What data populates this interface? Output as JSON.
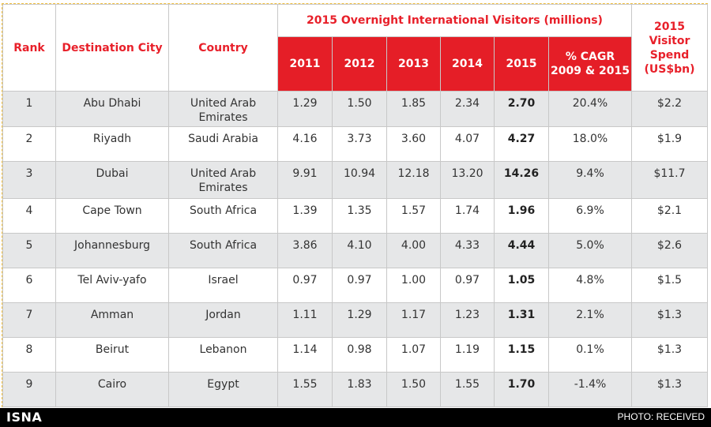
{
  "header": {
    "rank": "Rank",
    "city": "Destination City",
    "country": "Country",
    "group_title": "2015 Overnight International Visitors (millions)",
    "years": [
      "2011",
      "2012",
      "2013",
      "2014",
      "2015"
    ],
    "cagr_line1": "% CAGR",
    "cagr_line2": "2009 & 2015",
    "spend_line1": "2015",
    "spend_line2": "Visitor",
    "spend_line3": "Spend",
    "spend_line4": "(US$bn)"
  },
  "rows": [
    {
      "rank": "1",
      "city": "Abu Dhabi",
      "country_l1": "United Arab",
      "country_l2": "Emirates",
      "y2011": "1.29",
      "y2012": "1.50",
      "y2013": "1.85",
      "y2014": "2.34",
      "y2015": "2.70",
      "cagr": "20.4%",
      "spend": "$2.2"
    },
    {
      "rank": "2",
      "city": "Riyadh",
      "country_l1": "Saudi Arabia",
      "country_l2": "",
      "y2011": "4.16",
      "y2012": "3.73",
      "y2013": "3.60",
      "y2014": "4.07",
      "y2015": "4.27",
      "cagr": "18.0%",
      "spend": "$1.9"
    },
    {
      "rank": "3",
      "city": "Dubai",
      "country_l1": "United Arab",
      "country_l2": "Emirates",
      "y2011": "9.91",
      "y2012": "10.94",
      "y2013": "12.18",
      "y2014": "13.20",
      "y2015": "14.26",
      "cagr": "9.4%",
      "spend": "$11.7"
    },
    {
      "rank": "4",
      "city": "Cape Town",
      "country_l1": "South Africa",
      "country_l2": "",
      "y2011": "1.39",
      "y2012": "1.35",
      "y2013": "1.57",
      "y2014": "1.74",
      "y2015": "1.96",
      "cagr": "6.9%",
      "spend": "$2.1"
    },
    {
      "rank": "5",
      "city": "Johannesburg",
      "country_l1": "South Africa",
      "country_l2": "",
      "y2011": "3.86",
      "y2012": "4.10",
      "y2013": "4.00",
      "y2014": "4.33",
      "y2015": "4.44",
      "cagr": "5.0%",
      "spend": "$2.6"
    },
    {
      "rank": "6",
      "city": "Tel Aviv-yafo",
      "country_l1": "Israel",
      "country_l2": "",
      "y2011": "0.97",
      "y2012": "0.97",
      "y2013": "1.00",
      "y2014": "0.97",
      "y2015": "1.05",
      "cagr": "4.8%",
      "spend": "$1.5"
    },
    {
      "rank": "7",
      "city": "Amman",
      "country_l1": "Jordan",
      "country_l2": "",
      "y2011": "1.11",
      "y2012": "1.29",
      "y2013": "1.17",
      "y2014": "1.23",
      "y2015": "1.31",
      "cagr": "2.1%",
      "spend": "$1.3"
    },
    {
      "rank": "8",
      "city": "Beirut",
      "country_l1": "Lebanon",
      "country_l2": "",
      "y2011": "1.14",
      "y2012": "0.98",
      "y2013": "1.07",
      "y2014": "1.19",
      "y2015": "1.15",
      "cagr": "0.1%",
      "spend": "$1.3"
    },
    {
      "rank": "9",
      "city": "Cairo",
      "country_l1": "Egypt",
      "country_l2": "",
      "y2011": "1.55",
      "y2012": "1.83",
      "y2013": "1.50",
      "y2014": "1.55",
      "y2015": "1.70",
      "cagr": "-1.4%",
      "spend": "$1.3"
    }
  ],
  "footer": {
    "logo": "ISNA",
    "credit": "PHOTO: RECEIVED"
  },
  "colors": {
    "header_red": "#e51e27",
    "header_text_red": "#e8202a",
    "row_shade": "#e6e7e8"
  }
}
